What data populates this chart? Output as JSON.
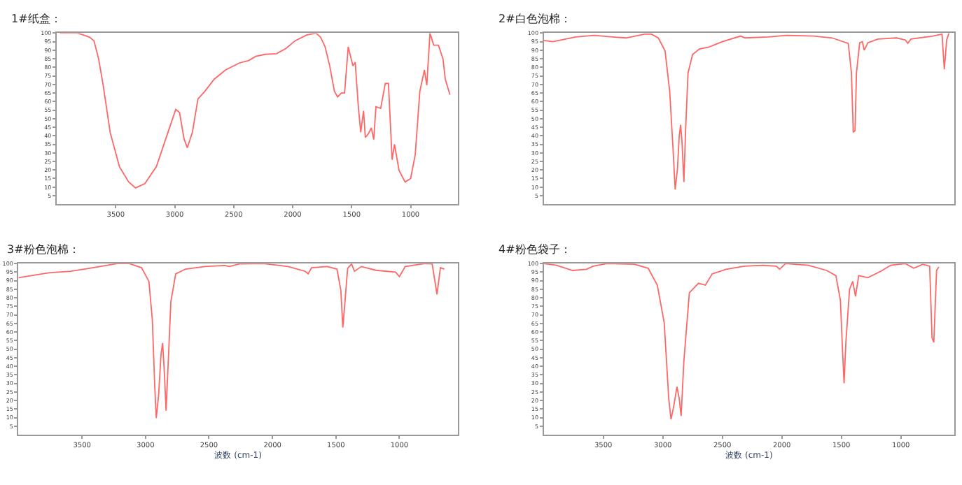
{
  "chart_data": [
    {
      "type": "line",
      "title": "1#纸盒：",
      "xlim": [
        4000,
        600
      ],
      "xticks": [
        3500,
        3000,
        2500,
        2000,
        1500,
        1000
      ],
      "ylim": [
        0,
        100
      ],
      "yticks": [
        5,
        10,
        15,
        20,
        25,
        30,
        35,
        40,
        45,
        50,
        55,
        60,
        65,
        70,
        75,
        80,
        85,
        90,
        95,
        100
      ],
      "grid": false,
      "marker": "none",
      "line_style": "solid",
      "series": [
        {
          "color": "#ff6666",
          "x": [
            3974,
            3821,
            3723,
            3684,
            3645,
            3606,
            3547,
            3469,
            3390,
            3332,
            3253,
            3155,
            3057,
            2991,
            2959,
            2920,
            2893,
            2850,
            2803,
            2744,
            2666,
            2568,
            2450,
            2372,
            2313,
            2234,
            2137,
            2058,
            1980,
            1882,
            1803,
            1764,
            1725,
            1686,
            1646,
            1619,
            1587,
            1560,
            1529,
            1489,
            1470,
            1442,
            1423,
            1399,
            1384,
            1360,
            1333,
            1313,
            1294,
            1254,
            1215,
            1188,
            1157,
            1137,
            1098,
            1047,
            1000,
            961,
            922,
            883,
            863,
            836,
            804,
            765,
            726,
            706,
            667
          ],
          "values": [
            100,
            100,
            97.7,
            95.5,
            85,
            69.5,
            42,
            22,
            13,
            9.5,
            12,
            22,
            42,
            55.4,
            53.6,
            38,
            33,
            42,
            61.5,
            66,
            73,
            78.5,
            82.6,
            84,
            86.4,
            87.6,
            88,
            91,
            95.5,
            98.9,
            100,
            97.7,
            92,
            80.8,
            66,
            62.7,
            65,
            65,
            92,
            80.8,
            83,
            56,
            42,
            54.6,
            39,
            41,
            44.6,
            37.8,
            57,
            56,
            70.6,
            70.6,
            26,
            35,
            19.7,
            13,
            15,
            29,
            66,
            78.5,
            69.5,
            100,
            93,
            93,
            85,
            73,
            64
          ]
        }
      ]
    },
    {
      "type": "line",
      "title": "2#白色泡棉：",
      "xlim": [
        4000,
        550
      ],
      "ylim": [
        0,
        100
      ],
      "yticks": [
        5,
        10,
        15,
        20,
        25,
        30,
        35,
        40,
        45,
        50,
        55,
        60,
        65,
        70,
        75,
        80,
        85,
        90,
        95,
        100
      ],
      "tick_labels": "y",
      "grid": false,
      "marker": "none",
      "line_style": "solid",
      "series": [
        {
          "color": "#ff6666",
          "x": [
            4000,
            3923,
            3731,
            3577,
            3423,
            3308,
            3154,
            3096,
            3038,
            2981,
            2942,
            2915,
            2896,
            2877,
            2862,
            2850,
            2838,
            2823,
            2808,
            2788,
            2750,
            2692,
            2615,
            2500,
            2346,
            2308,
            2115,
            1962,
            1731,
            1577,
            1442,
            1415,
            1400,
            1385,
            1373,
            1346,
            1323,
            1308,
            1277,
            1192,
            1038,
            962,
            942,
            915,
            731,
            654,
            635,
            615,
            596
          ],
          "values": [
            95.7,
            95,
            97.8,
            98.7,
            97.8,
            97.2,
            99.4,
            99.4,
            97.2,
            89.6,
            65.9,
            33.5,
            8.6,
            20.5,
            40,
            46.4,
            35.6,
            13,
            44.3,
            76.7,
            87.5,
            90.7,
            91.8,
            95,
            98.3,
            97.2,
            97.8,
            98.7,
            98.3,
            97.2,
            94,
            76.7,
            42,
            43,
            76.7,
            94.4,
            95,
            90,
            94.4,
            96.5,
            97.2,
            96,
            94,
            96.5,
            98.3,
            99.4,
            78.8,
            96,
            100
          ]
        }
      ]
    },
    {
      "type": "line",
      "title": "3#粉色泡棉：",
      "xlabel": "波数 (cm-1)",
      "xlim": [
        4000,
        540
      ],
      "xticks": [
        3500,
        3000,
        2500,
        2000,
        1500,
        1000
      ],
      "ylim": [
        0,
        100
      ],
      "yticks": [
        5,
        10,
        15,
        20,
        25,
        30,
        35,
        40,
        45,
        50,
        55,
        60,
        65,
        70,
        75,
        80,
        85,
        90,
        95,
        100
      ],
      "grid": false,
      "marker": "none",
      "line_style": "solid",
      "series": [
        {
          "color": "#ff6666",
          "x": [
            4000,
            3762,
            3588,
            3415,
            3223,
            3127,
            3031,
            2973,
            2946,
            2927,
            2915,
            2896,
            2877,
            2865,
            2850,
            2838,
            2819,
            2800,
            2762,
            2685,
            2531,
            2377,
            2338,
            2262,
            2069,
            1877,
            1742,
            1719,
            1692,
            1569,
            1492,
            1461,
            1446,
            1431,
            1408,
            1377,
            1354,
            1300,
            1185,
            1031,
            1000,
            954,
            800,
            742,
            704,
            677,
            646
          ],
          "values": [
            91.8,
            94.6,
            95.5,
            97.6,
            100,
            100,
            97.6,
            89.6,
            67,
            28,
            9.7,
            23.8,
            47.5,
            53.6,
            34.6,
            14,
            45.4,
            77.8,
            94,
            96.8,
            98.3,
            98.9,
            98.3,
            99.8,
            100,
            98.3,
            95.5,
            94,
            97.6,
            98.3,
            96.8,
            84.2,
            62.6,
            75.6,
            97.2,
            99.8,
            95.5,
            98.3,
            96.1,
            95,
            92.4,
            98.3,
            100,
            99.8,
            82,
            97.6,
            96.8
          ]
        }
      ]
    },
    {
      "type": "line",
      "title": "4#粉色袋子：",
      "xlabel": "波数 (cm-1)",
      "xlim": [
        4000,
        550
      ],
      "xticks": [
        3500,
        3000,
        2500,
        2000,
        1500,
        1000
      ],
      "ylim": [
        0,
        100
      ],
      "yticks": [
        5,
        10,
        15,
        20,
        25,
        30,
        35,
        40,
        45,
        50,
        55,
        60,
        65,
        70,
        75,
        80,
        85,
        90,
        95,
        100
      ],
      "grid": false,
      "marker": "none",
      "line_style": "solid",
      "series": [
        {
          "color": "#ff6666",
          "x": [
            4000,
            3892,
            3758,
            3642,
            3585,
            3469,
            3238,
            3123,
            3046,
            2988,
            2950,
            2931,
            2908,
            2881,
            2862,
            2846,
            2823,
            2777,
            2700,
            2642,
            2585,
            2469,
            2315,
            2162,
            2046,
            2019,
            1969,
            1777,
            1623,
            1546,
            1508,
            1489,
            1477,
            1462,
            1431,
            1404,
            1381,
            1354,
            1277,
            1162,
            1085,
            962,
            892,
            815,
            758,
            738,
            723,
            700,
            681
          ],
          "values": [
            100,
            99,
            96,
            96.7,
            98.5,
            100,
            99.6,
            97.3,
            87.4,
            65.3,
            21,
            9,
            16.7,
            28,
            21,
            11,
            43,
            83,
            88.5,
            87.4,
            94,
            96.7,
            98.5,
            99,
            98.5,
            96.7,
            100,
            99,
            96,
            93,
            78.6,
            47.6,
            30,
            54,
            85,
            89.6,
            80.8,
            93,
            91.8,
            95.8,
            99,
            100,
            97.3,
            99.6,
            98.5,
            56.5,
            54,
            96,
            98
          ]
        }
      ]
    }
  ]
}
